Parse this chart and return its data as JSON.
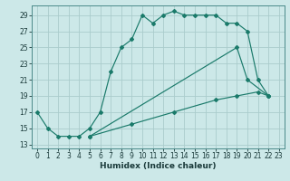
{
  "xlabel": "Humidex (Indice chaleur)",
  "bg_color": "#cce8e8",
  "grid_color": "#aacccc",
  "line_color": "#1a7a6a",
  "xlim": [
    -0.5,
    23.5
  ],
  "ylim": [
    12.5,
    30.2
  ],
  "xticks": [
    0,
    1,
    2,
    3,
    4,
    5,
    6,
    7,
    8,
    9,
    10,
    11,
    12,
    13,
    14,
    15,
    16,
    17,
    18,
    19,
    20,
    21,
    22,
    23
  ],
  "yticks": [
    13,
    15,
    17,
    19,
    21,
    23,
    25,
    27,
    29
  ],
  "series": [
    {
      "x": [
        0,
        1,
        2,
        3,
        4,
        5,
        6,
        7,
        8,
        9,
        10,
        11,
        12,
        13,
        14,
        15,
        16,
        17,
        18,
        19,
        20,
        21,
        22
      ],
      "y": [
        17,
        15,
        14,
        14,
        14,
        15,
        17,
        22,
        25,
        26,
        29,
        28,
        29,
        29.5,
        29,
        29,
        29,
        29,
        28,
        28,
        27,
        21,
        19
      ]
    },
    {
      "x": [
        5,
        19,
        20,
        22
      ],
      "y": [
        14,
        25,
        21,
        19
      ]
    },
    {
      "x": [
        5,
        9,
        13,
        17,
        19,
        21,
        22
      ],
      "y": [
        14,
        15.5,
        17,
        18.5,
        19,
        19.5,
        19
      ]
    }
  ]
}
